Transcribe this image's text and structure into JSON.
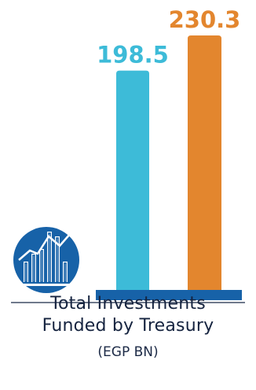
{
  "chart_data": {
    "type": "bar",
    "categories": [
      "",
      ""
    ],
    "values": [
      198.5,
      230.3
    ],
    "value_labels": [
      "198.5",
      "230.3"
    ],
    "colors": [
      "#3dbbd8",
      "#e3862e"
    ],
    "title_line1": "Total Investments",
    "title_line2": "Funded by Treasury",
    "unit": "(EGP BN)",
    "ylim": [
      0,
      230.3
    ],
    "grid": false,
    "legend": "none"
  },
  "icon": {
    "name": "bar-chart-growth-icon",
    "circle_color": "#1762a8"
  },
  "baseline_color": "#1762a8"
}
